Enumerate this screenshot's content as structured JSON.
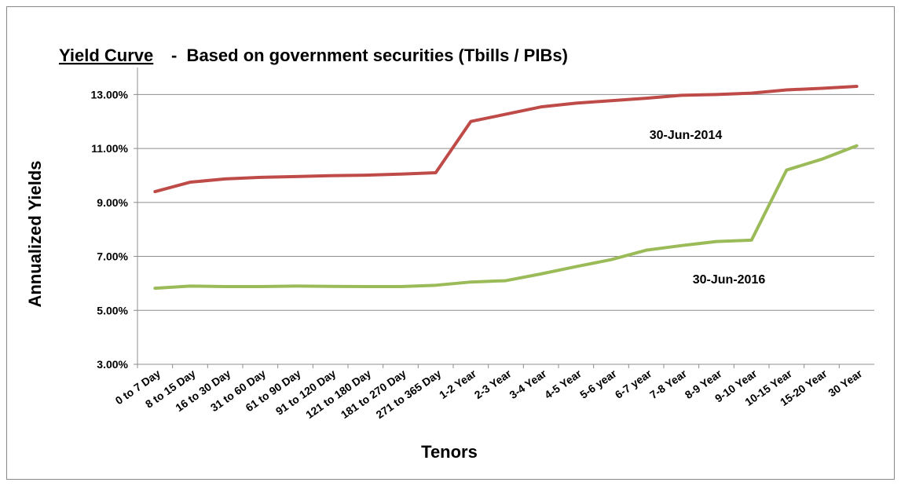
{
  "chart_data": {
    "type": "line",
    "title": "Yield Curve",
    "subtitle": "-  Based on government securities (Tbills / PIBs)",
    "y_label": "Annualized Yields",
    "x_label": "Tenors",
    "categories": [
      "0 to 7 Day",
      "8 to 15 Day",
      "16 to 30 Day",
      "31 to 60 Day",
      "61 to 90 Day",
      "91 to 120 Day",
      "121 to 180 Day",
      "181 to 270 Day",
      "271 to 365 Day",
      "1-2 Year",
      "2-3 Year",
      "3-4 Year",
      "4-5 Year",
      "5-6 year",
      "6-7 year",
      "7-8 Year",
      "8-9 Year",
      "9-10 Year",
      "10-15 Year",
      "15-20 Year",
      "30 Year"
    ],
    "series": [
      {
        "name": "30-Jun-2014",
        "color": "#be4b48",
        "values": [
          9.4,
          9.75,
          9.87,
          9.93,
          9.96,
          9.99,
          10.01,
          10.05,
          10.1,
          12.0,
          12.27,
          12.54,
          12.68,
          12.77,
          12.86,
          12.97,
          13.0,
          13.05,
          13.17,
          13.23,
          13.3
        ]
      },
      {
        "name": "30-Jun-2016",
        "color": "#9bbb59",
        "values": [
          5.82,
          5.9,
          5.88,
          5.88,
          5.9,
          5.89,
          5.88,
          5.88,
          5.93,
          6.05,
          6.1,
          6.35,
          6.62,
          6.88,
          7.23,
          7.4,
          7.55,
          7.6,
          10.2,
          10.6,
          11.1
        ]
      }
    ],
    "ylim": [
      3,
      14
    ],
    "yticks": [
      {
        "value": 3,
        "label": "3.00%"
      },
      {
        "value": 5,
        "label": "5.00%"
      },
      {
        "value": 7,
        "label": "7.00%"
      },
      {
        "value": 9,
        "label": "9.00%"
      },
      {
        "value": 11,
        "label": "11.00%"
      },
      {
        "value": 13,
        "label": "13.00%"
      }
    ],
    "grid": true
  }
}
